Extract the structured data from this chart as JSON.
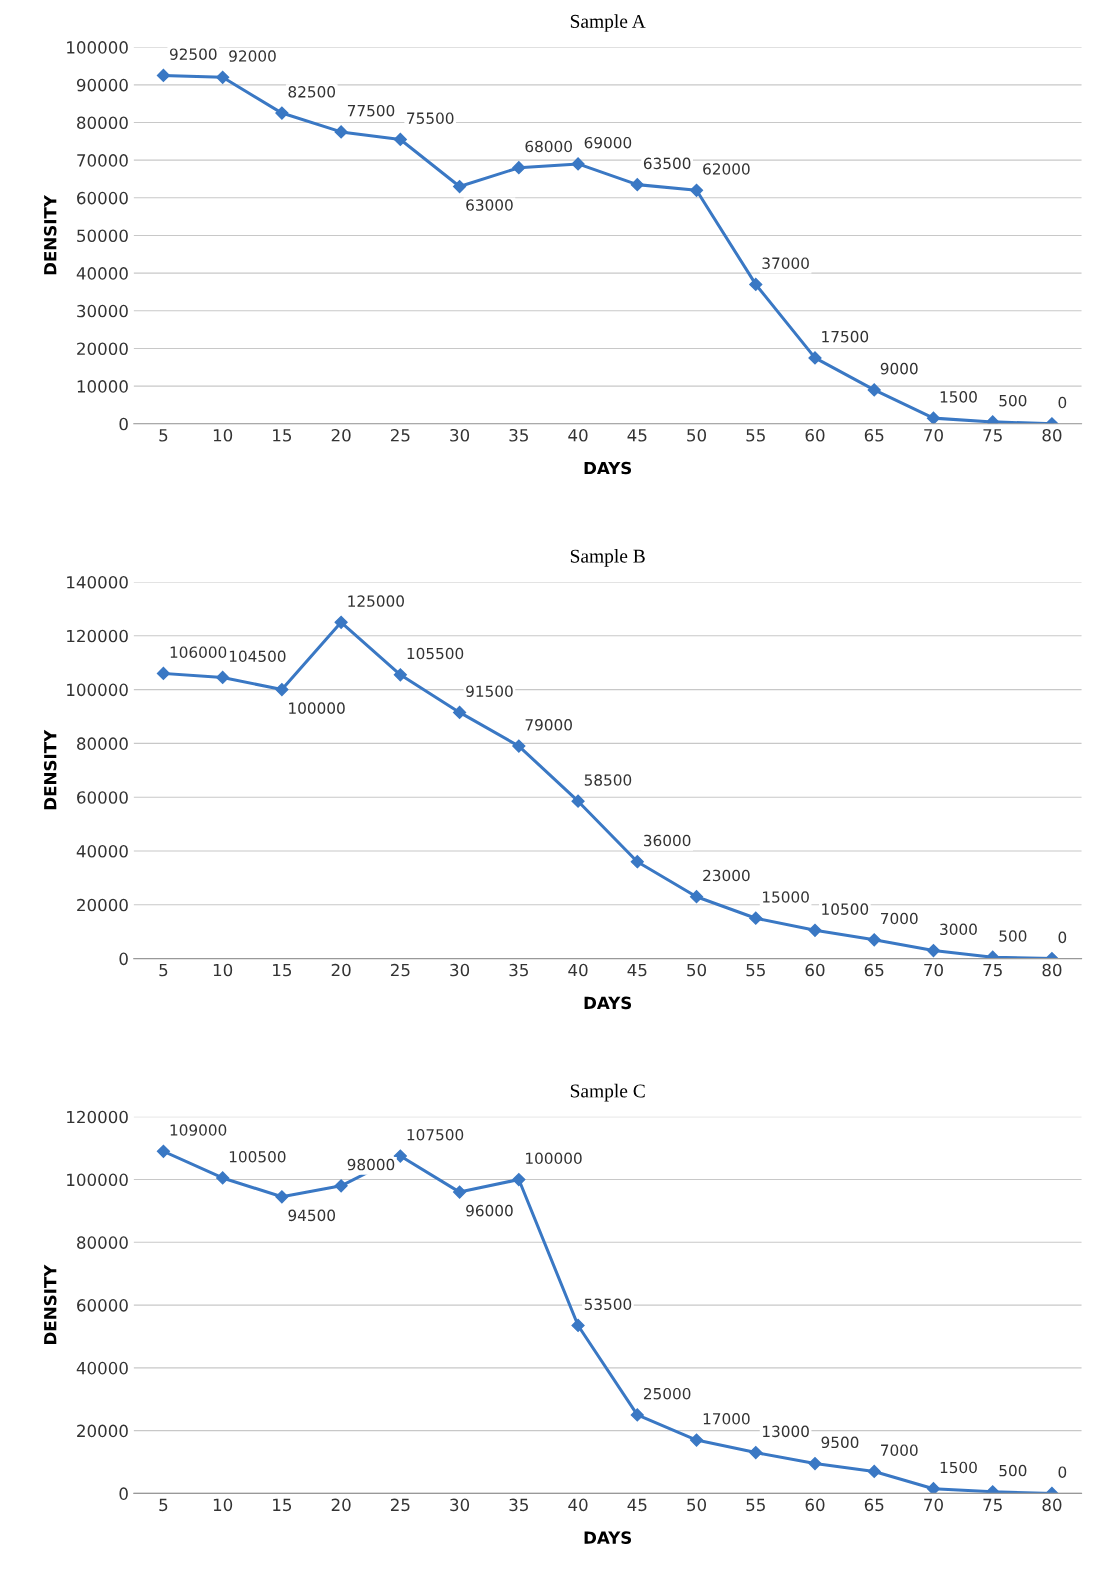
{
  "chart_data": [
    {
      "type": "line",
      "title": "Sample A",
      "xlabel": "DAYS",
      "ylabel": "DENSITY",
      "categories": [
        "5",
        "10",
        "15",
        "20",
        "25",
        "30",
        "35",
        "40",
        "45",
        "50",
        "55",
        "60",
        "65",
        "70",
        "75",
        "80"
      ],
      "series": [
        {
          "color": "#3a78c4",
          "values": [
            92500,
            92000,
            82500,
            77500,
            75500,
            63000,
            68000,
            69000,
            63500,
            62000,
            37000,
            17500,
            9000,
            1500,
            500,
            0
          ]
        }
      ],
      "ylim": [
        0,
        100000
      ],
      "yticks": [
        0,
        10000,
        20000,
        30000,
        40000,
        50000,
        60000,
        70000,
        80000,
        90000,
        100000
      ],
      "grid": "y",
      "marker": "diamond",
      "line_style": "solid",
      "data_labels": true
    },
    {
      "type": "line",
      "title": "Sample B",
      "xlabel": "DAYS",
      "ylabel": "DENSITY",
      "categories": [
        "5",
        "10",
        "15",
        "20",
        "25",
        "30",
        "35",
        "40",
        "45",
        "50",
        "55",
        "60",
        "65",
        "70",
        "75",
        "80"
      ],
      "series": [
        {
          "color": "#3a78c4",
          "values": [
            106000,
            104500,
            100000,
            125000,
            105500,
            91500,
            79000,
            58500,
            36000,
            23000,
            15000,
            10500,
            7000,
            3000,
            500,
            0
          ]
        }
      ],
      "ylim": [
        0,
        140000
      ],
      "yticks": [
        0,
        20000,
        40000,
        60000,
        80000,
        100000,
        120000,
        140000
      ],
      "grid": "y",
      "marker": "diamond",
      "line_style": "solid",
      "data_labels": true
    },
    {
      "type": "line",
      "title": "Sample C",
      "xlabel": "DAYS",
      "ylabel": "DENSITY",
      "categories": [
        "5",
        "10",
        "15",
        "20",
        "25",
        "30",
        "35",
        "40",
        "45",
        "50",
        "55",
        "60",
        "65",
        "70",
        "75",
        "80"
      ],
      "series": [
        {
          "color": "#3a78c4",
          "values": [
            109000,
            100500,
            94500,
            98000,
            107500,
            96000,
            100000,
            53500,
            25000,
            17000,
            13000,
            9500,
            7000,
            1500,
            500,
            0
          ]
        }
      ],
      "ylim": [
        0,
        120000
      ],
      "yticks": [
        0,
        20000,
        40000,
        60000,
        80000,
        100000,
        120000
      ],
      "grid": "y",
      "marker": "diamond",
      "line_style": "solid",
      "data_labels": true
    }
  ]
}
